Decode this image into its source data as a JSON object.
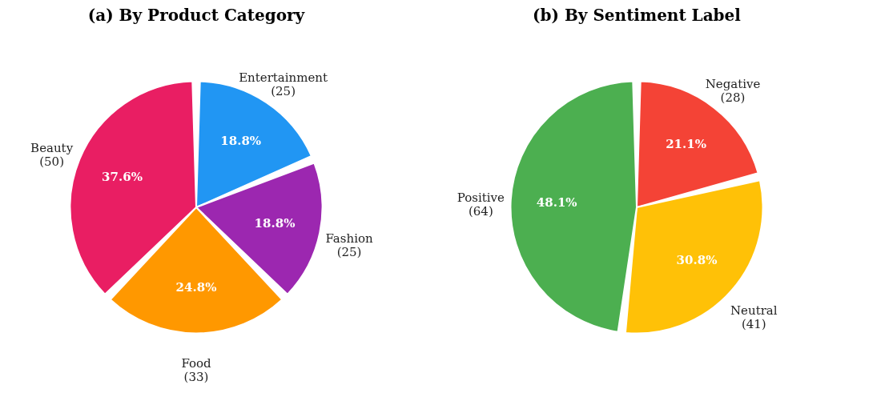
{
  "chart_data": [
    {
      "type": "pie",
      "title": "(a) By Product Category",
      "categories": [
        "Entertainment\n(25)",
        "Fashion\n(25)",
        "Food\n(33)",
        "Beauty\n(50)"
      ],
      "values": [
        18.8,
        18.8,
        24.8,
        37.6
      ],
      "colors": [
        "#2196f3",
        "#9c27b0",
        "#ff9800",
        "#e91e63"
      ],
      "value_labels": [
        "18.8%",
        "18.8%",
        "24.8%",
        "37.6%"
      ]
    },
    {
      "type": "pie",
      "title": "(b) By Sentiment Label",
      "categories": [
        "Negative\n(28)",
        "Neutral\n(41)",
        "Positive\n(64)"
      ],
      "values": [
        21.1,
        30.8,
        48.1
      ],
      "colors": [
        "#f44336",
        "#ffc107",
        "#4caf50"
      ],
      "value_labels": [
        "21.1%",
        "30.8%",
        "48.1%"
      ]
    }
  ]
}
